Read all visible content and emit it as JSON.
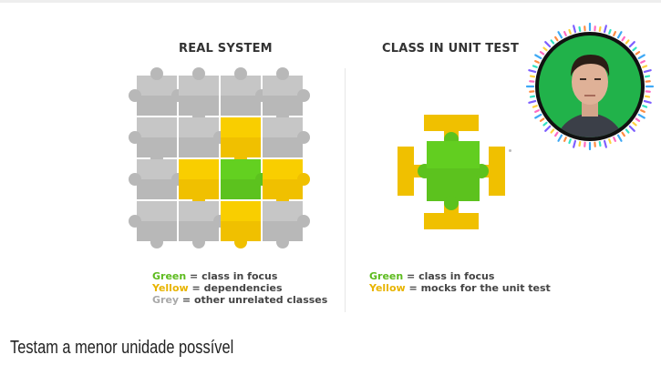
{
  "left_panel": {
    "title": "REAL SYSTEM",
    "legend": [
      {
        "key": "Green",
        "text": " = class in focus",
        "color": "#5dbb1e"
      },
      {
        "key": "Yellow",
        "text": " = dependencies",
        "color": "#e8b400"
      },
      {
        "key": "Grey",
        "text": " = other unrelated classes",
        "color": "#a9a9a9"
      }
    ]
  },
  "right_panel": {
    "title": "CLASS IN UNIT TEST",
    "legend": [
      {
        "key": "Green",
        "text": " = class in focus",
        "color": "#5dbb1e"
      },
      {
        "key": "Yellow",
        "text": " = mocks for the unit test",
        "color": "#e8b400"
      }
    ]
  },
  "colors": {
    "green": "#5cc21e",
    "yellow": "#f0c000",
    "grey": "#b8b8b8"
  },
  "grid": {
    "rows": [
      [
        "grey",
        "grey",
        "grey",
        "grey"
      ],
      [
        "grey",
        "grey",
        "yellow",
        "grey"
      ],
      [
        "grey",
        "yellow",
        "green",
        "yellow"
      ],
      [
        "grey",
        "grey",
        "yellow",
        "grey"
      ]
    ]
  },
  "caption": "Testam a menor unidade possível",
  "avatar": {
    "icon": "presenter-avatar"
  }
}
